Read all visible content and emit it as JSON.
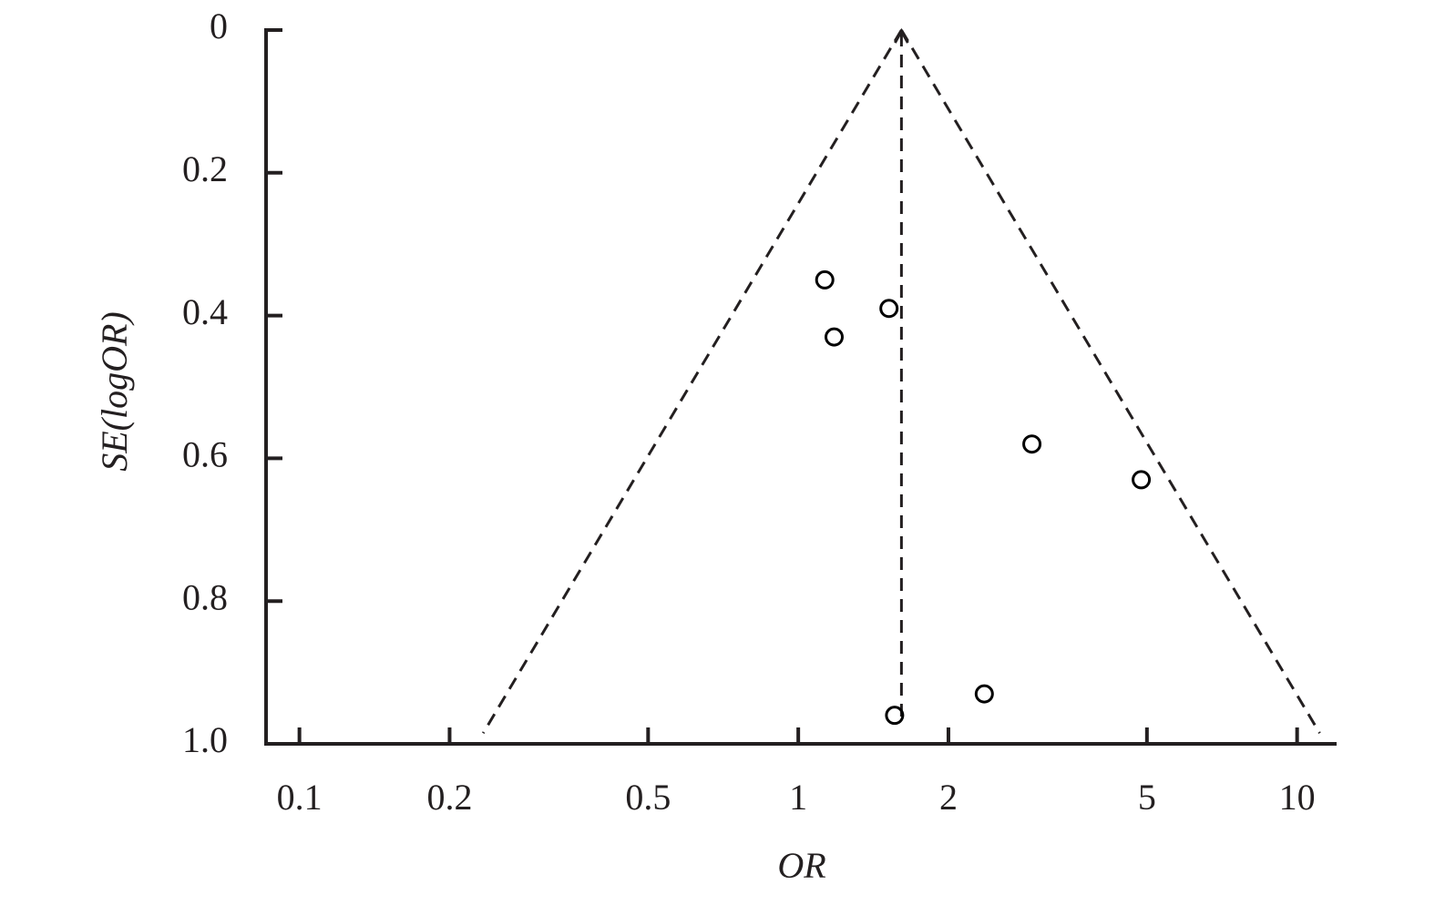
{
  "chart_data": {
    "type": "scatter",
    "xlabel": "OR",
    "ylabel": "SE(logOR)",
    "x": [
      1.13,
      1.52,
      1.18,
      2.94,
      4.87,
      2.36,
      1.56
    ],
    "values": [
      0.35,
      0.39,
      0.43,
      0.58,
      0.63,
      0.93,
      0.96
    ],
    "color": "#000000",
    "xscale": "log",
    "xlim": [
      0.085,
      12
    ],
    "xticks": [
      0.1,
      0.2,
      0.5,
      1,
      2,
      5,
      10
    ],
    "ylim": [
      0,
      1
    ],
    "yinverted": true,
    "yticks": [
      0,
      0.2,
      0.4,
      0.6,
      0.8,
      {
        "value": 1,
        "label": "1.0"
      }
    ],
    "funnel": {
      "center": 1.61,
      "se": 0.985
    }
  }
}
